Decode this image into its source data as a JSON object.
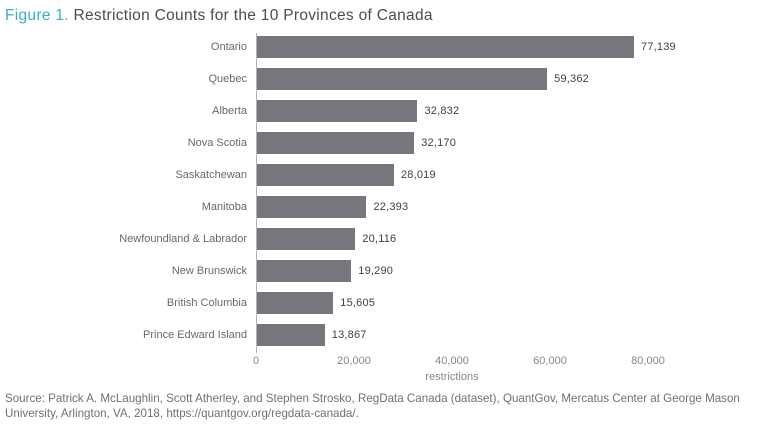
{
  "title": {
    "figure_label": "Figure 1.",
    "text": " Restriction Counts for the 10 Provinces of Canada"
  },
  "chart_data": {
    "type": "bar",
    "orientation": "horizontal",
    "title": "Figure 1. Restriction Counts for the 10 Provinces of Canada",
    "categories": [
      "Ontario",
      "Quebec",
      "Alberta",
      "Nova Scotia",
      "Saskatchewan",
      "Manitoba",
      "Newfoundland & Labrador",
      "New Brunswick",
      "British Columbia",
      "Prince Edward Island"
    ],
    "values": [
      77139,
      59362,
      32832,
      32170,
      28019,
      22393,
      20116,
      19290,
      15605,
      13867
    ],
    "value_labels": [
      "77,139",
      "59,362",
      "32,832",
      "32,170",
      "28,019",
      "22,393",
      "20,116",
      "19,290",
      "15,605",
      "13,867"
    ],
    "xlabel": "restrictions",
    "ylabel": "",
    "xlim": [
      0,
      80000
    ],
    "xticks": [
      {
        "value": 0,
        "label": "0"
      },
      {
        "value": 20000,
        "label": "20,000"
      },
      {
        "value": 40000,
        "label": "40,000"
      },
      {
        "value": 60000,
        "label": "60,000"
      },
      {
        "value": 80000,
        "label": "80,000"
      }
    ],
    "grid": false,
    "legend": null,
    "bar_color": "#75777D"
  },
  "source_note": "Source: Patrick A. McLaughlin, Scott Atherley, and Stephen Strosko, RegData Canada (dataset), QuantGov, Mercatus Center at George Mason University, Arlington, VA, 2018, https://quantgov.org/regdata-canada/.",
  "colors": {
    "accent_teal": "#3AAEC4",
    "title_text": "#4C4D52",
    "bar": "#75777D",
    "category_label": "#68696D",
    "value_label": "#404145",
    "axis_line": "#B3B5B8",
    "tick_label": "#85878B",
    "source_text": "#6E7074"
  }
}
